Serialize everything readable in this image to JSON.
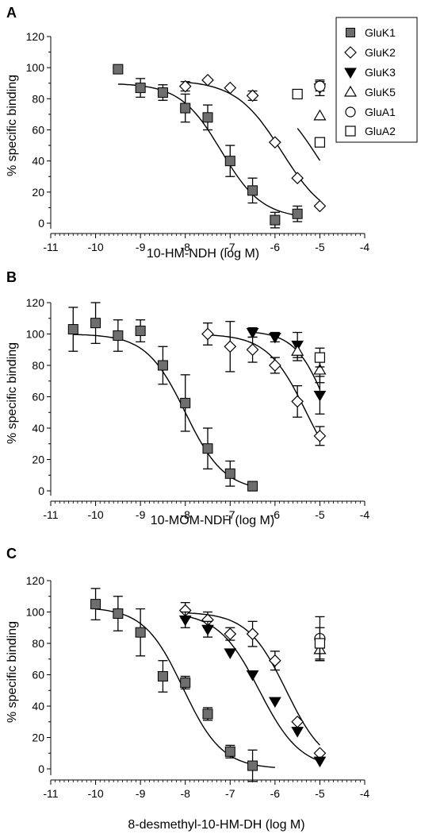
{
  "legend": {
    "entries": [
      {
        "label": "GluK1",
        "marker": "square-filled"
      },
      {
        "label": "GluK2",
        "marker": "diamond-open"
      },
      {
        "label": "GluK3",
        "marker": "triangle-down-filled"
      },
      {
        "label": "GluK5",
        "marker": "triangle-up-open"
      },
      {
        "label": "GluA1",
        "marker": "circle-open"
      },
      {
        "label": "GluA2",
        "marker": "square-open"
      }
    ],
    "placement": "top-right of panel A"
  },
  "colors": {
    "gluk1_fill": "#6e6e6e",
    "black": "#000000",
    "open_fill": "#ffffff"
  },
  "chart_data": [
    {
      "type": "scatter",
      "panel": "A",
      "title": "",
      "xlabel": "10-HM-NDH (log M)",
      "ylabel": "% specific binding",
      "xlim": [
        -11,
        -4
      ],
      "ylim": [
        -5,
        125
      ],
      "xticks": [
        -11,
        -10,
        -9,
        -8,
        -7,
        -6,
        -5,
        -4
      ],
      "yticks": [
        0,
        20,
        40,
        60,
        80,
        100,
        120
      ],
      "grid": false,
      "series": [
        {
          "name": "GluK1",
          "x": [
            -9.5,
            -9,
            -8.5,
            -8,
            -7.5,
            -7,
            -6.5,
            -6,
            -5.5
          ],
          "y": [
            99,
            87,
            84,
            74,
            68,
            40,
            21,
            2,
            6
          ],
          "err": [
            0,
            6,
            5,
            9,
            8,
            10,
            8,
            5,
            5
          ],
          "fit": {
            "top": 90,
            "bottom": 3,
            "logec50": -7.2,
            "hill": 0.95,
            "from": -9.5,
            "to": -5.5
          }
        },
        {
          "name": "GluK2",
          "x": [
            -8,
            -7.5,
            -7,
            -6.5,
            -6,
            -5.5,
            -5
          ],
          "y": [
            88,
            92,
            87,
            82,
            52,
            29,
            11
          ],
          "err": [
            3,
            0,
            0,
            3,
            0,
            0,
            0
          ],
          "fit": {
            "top": 92,
            "bottom": 0,
            "logec50": -5.85,
            "hill": 0.85,
            "from": -8,
            "to": -5
          }
        },
        {
          "name": "GluK3",
          "x": [
            -5
          ],
          "y": [
            87
          ],
          "err": [
            5
          ]
        },
        {
          "name": "GluK5",
          "x": [
            -5
          ],
          "y": [
            69
          ],
          "err": [
            0
          ]
        },
        {
          "name": "GluA1",
          "x": [
            -5
          ],
          "y": [
            88
          ],
          "err": [
            3
          ]
        },
        {
          "name": "GluA2",
          "x": [
            -5.5,
            -5
          ],
          "y": [
            83,
            52
          ],
          "err": [
            0,
            0
          ],
          "fit": {
            "top": 85,
            "bottom": 0,
            "logec50": -5.05,
            "hill": 0.9,
            "from": -5.5,
            "to": -5
          }
        }
      ]
    },
    {
      "type": "scatter",
      "panel": "B",
      "title": "",
      "xlabel": "10-MOM-NDH (log M)",
      "ylabel": "% specific binding",
      "xlim": [
        -11,
        -4
      ],
      "ylim": [
        -5,
        125
      ],
      "xticks": [
        -11,
        -10,
        -9,
        -8,
        -7,
        -6,
        -5,
        -4
      ],
      "yticks": [
        0,
        20,
        40,
        60,
        80,
        100,
        120
      ],
      "grid": false,
      "series": [
        {
          "name": "GluK1",
          "x": [
            -10.5,
            -10,
            -9.5,
            -9,
            -8.5,
            -8,
            -7.5,
            -7,
            -6.5
          ],
          "y": [
            103,
            107,
            99,
            102,
            80,
            56,
            27,
            11,
            3
          ],
          "err": [
            14,
            13,
            10,
            7,
            12,
            18,
            13,
            8,
            3
          ],
          "fit": {
            "top": 100,
            "bottom": 0,
            "logec50": -8.0,
            "hill": 1.0,
            "from": -10.5,
            "to": -6.5
          }
        },
        {
          "name": "GluK2",
          "x": [
            -7.5,
            -7,
            -6.5,
            -6,
            -5.5,
            -5
          ],
          "y": [
            100,
            92,
            90,
            80,
            57,
            35
          ],
          "err": [
            7,
            16,
            8,
            5,
            10,
            6
          ],
          "fit": {
            "top": 100,
            "bottom": 0,
            "logec50": -5.3,
            "hill": 1.0,
            "from": -7.5,
            "to": -5
          }
        },
        {
          "name": "GluK3",
          "x": [
            -6.5,
            -6,
            -5.5,
            -5
          ],
          "y": [
            101,
            98,
            93,
            61
          ],
          "err": [
            3,
            3,
            8,
            12
          ],
          "fit": {
            "top": 102,
            "bottom": 0,
            "logec50": -4.8,
            "hill": 1.2,
            "from": -6.5,
            "to": -5
          }
        },
        {
          "name": "GluK5",
          "x": [
            -5.5,
            -5
          ],
          "y": [
            89,
            77
          ],
          "err": [
            6,
            8
          ]
        },
        {
          "name": "GluA2",
          "x": [
            -5
          ],
          "y": [
            85
          ],
          "err": [
            6
          ]
        }
      ]
    },
    {
      "type": "scatter",
      "panel": "C",
      "title": "",
      "xlabel": "8-desmethyl-10-HM-DH (log M)",
      "ylabel": "% specific binding",
      "xlim": [
        -11,
        -4
      ],
      "ylim": [
        -5,
        125
      ],
      "xticks": [
        -11,
        -10,
        -9,
        -8,
        -7,
        -6,
        -5,
        -4
      ],
      "yticks": [
        0,
        20,
        40,
        60,
        80,
        100,
        120
      ],
      "grid": false,
      "series": [
        {
          "name": "GluK1",
          "x": [
            -10,
            -9.5,
            -9,
            -8.5,
            -8,
            -7.5,
            -7,
            -6.5
          ],
          "y": [
            105,
            99,
            87,
            59,
            55,
            35,
            11,
            2
          ],
          "err": [
            10,
            11,
            15,
            10,
            4,
            4,
            4,
            10
          ],
          "fit": {
            "top": 103,
            "bottom": 0,
            "logec50": -8.05,
            "hill": 1.0,
            "from": -10,
            "to": -6
          }
        },
        {
          "name": "GluK2",
          "x": [
            -8,
            -7.5,
            -7,
            -6.5,
            -6,
            -5.5,
            -5
          ],
          "y": [
            101,
            95,
            86,
            86,
            69,
            30,
            10
          ],
          "err": [
            5,
            5,
            4,
            8,
            6,
            0,
            0
          ],
          "fit": {
            "top": 100,
            "bottom": 0,
            "logec50": -5.75,
            "hill": 1.0,
            "from": -8,
            "to": -5
          }
        },
        {
          "name": "GluK3",
          "x": [
            -8,
            -7.5,
            -7,
            -6.5,
            -6,
            -5.5,
            -5
          ],
          "y": [
            95,
            89,
            74,
            60,
            43,
            24,
            5
          ],
          "err": [
            5,
            5,
            0,
            0,
            0,
            0,
            0
          ],
          "fit": {
            "top": 100,
            "bottom": 0,
            "logec50": -6.35,
            "hill": 0.95,
            "from": -8,
            "to": -5
          }
        },
        {
          "name": "GluK5",
          "x": [
            -5
          ],
          "y": [
            76
          ],
          "err": [
            7
          ]
        },
        {
          "name": "GluA1",
          "x": [
            -5
          ],
          "y": [
            83
          ],
          "err": [
            14
          ]
        },
        {
          "name": "GluA2",
          "x": [
            -5
          ],
          "y": [
            80
          ],
          "err": [
            10
          ]
        }
      ]
    }
  ]
}
